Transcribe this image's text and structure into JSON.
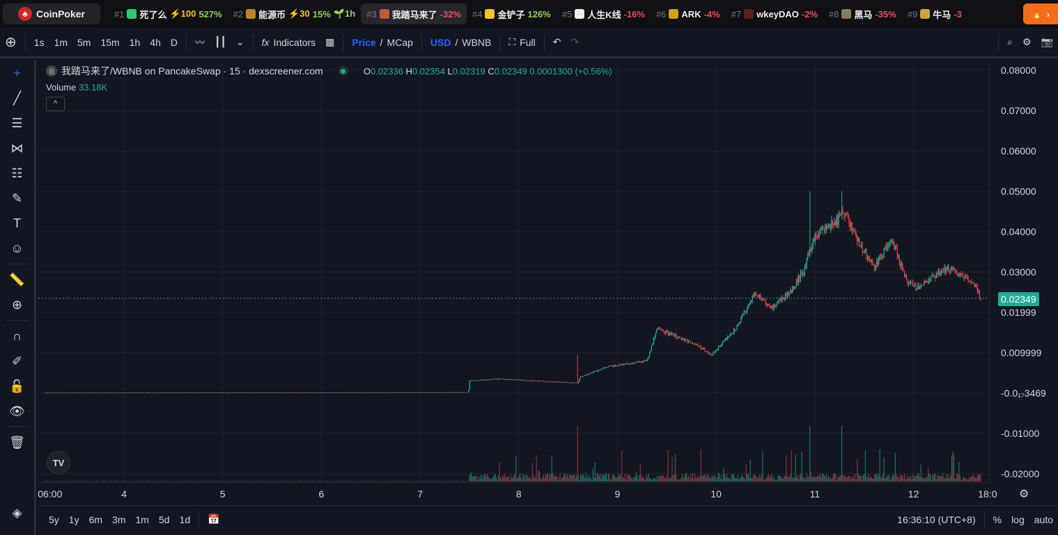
{
  "topbar": {
    "brand": "CoinPoker",
    "tickers": [
      {
        "rank": "#1",
        "name": "死了么",
        "boost": "⚡100",
        "change": "527%",
        "dir": "pos",
        "icon_color": "#2ecc71"
      },
      {
        "rank": "#2",
        "name": "能源币",
        "boost": "⚡30",
        "change": "15%",
        "extra": "🌱1h",
        "dir": "pos",
        "icon_color": "#b8862b"
      },
      {
        "rank": "#3",
        "name": "我踏马来了",
        "change": "-32%",
        "dir": "neg",
        "icon_color": "#c0583a",
        "active": true
      },
      {
        "rank": "#4",
        "name": "金铲子",
        "change": "126%",
        "dir": "pos",
        "icon_color": "#f5c12e"
      },
      {
        "rank": "#5",
        "name": "人生K线",
        "change": "-16%",
        "dir": "neg",
        "icon_color": "#eeeeee"
      },
      {
        "rank": "#6",
        "name": "ARK",
        "change": "-4%",
        "dir": "neg",
        "icon_color": "#d4a017"
      },
      {
        "rank": "#7",
        "name": "wkeyDAO",
        "change": "-2%",
        "dir": "neg",
        "icon_color": "#552222"
      },
      {
        "rank": "#8",
        "name": "黑马",
        "change": "-35%",
        "dir": "neg",
        "icon_color": "#8a7a60"
      },
      {
        "rank": "#9",
        "name": "牛马",
        "change": "-3",
        "dir": "neg",
        "icon_color": "#c9a640"
      }
    ]
  },
  "toolbar": {
    "intervals": [
      "1s",
      "1m",
      "5m",
      "15m",
      "1h",
      "4h",
      "D"
    ],
    "active_interval": "15m",
    "indicators": "Indicators",
    "price": "Price",
    "mcap": "MCap",
    "usd": "USD",
    "wbnb": "WBNB",
    "full": "Full"
  },
  "legend": {
    "icon": "我",
    "title": "我踏马来了/WBNB on PancakeSwap · 15 · dexscreener.com",
    "o": "0.02336",
    "h": "0.02354",
    "l": "0.02319",
    "c": "0.02349",
    "change": "0.0001300 (+0.56%)",
    "volume_label": "Volume",
    "volume": "33.18K"
  },
  "price_axis": [
    "0.08000",
    "0.07000",
    "0.06000",
    "0.05000",
    "0.04000",
    "0.03000",
    "0.01999",
    "0.009999",
    "-0.0₁₇3469",
    "-0.01000",
    "-0.02000"
  ],
  "current_price": "0.02349",
  "time_axis": [
    {
      "label": "06:00",
      "day": 3.25
    },
    {
      "label": "4",
      "day": 4
    },
    {
      "label": "5",
      "day": 5
    },
    {
      "label": "6",
      "day": 6
    },
    {
      "label": "7",
      "day": 7
    },
    {
      "label": "8",
      "day": 8
    },
    {
      "label": "9",
      "day": 9
    },
    {
      "label": "10",
      "day": 10
    },
    {
      "label": "11",
      "day": 11
    },
    {
      "label": "12",
      "day": 12
    },
    {
      "label": "18:0",
      "day": 12.75
    }
  ],
  "bottom": {
    "ranges": [
      "5y",
      "1y",
      "6m",
      "3m",
      "1m",
      "5d",
      "1d"
    ],
    "time": "16:36:10 (UTC+8)",
    "percent": "%",
    "log": "log",
    "auto": "auto"
  },
  "chart_data": {
    "type": "candlestick",
    "interval": "15m",
    "colors": {
      "up": "#22ab94",
      "down": "#f23645"
    },
    "price_path": [
      [
        3.2,
        0.0001
      ],
      [
        7.49,
        0.0002
      ],
      [
        7.5,
        0.003
      ],
      [
        7.8,
        0.0035
      ],
      [
        8.6,
        0.0025
      ],
      [
        8.62,
        0.004
      ],
      [
        8.9,
        0.0065
      ],
      [
        9.3,
        0.008
      ],
      [
        9.4,
        0.016
      ],
      [
        9.8,
        0.012
      ],
      [
        9.95,
        0.0095
      ],
      [
        10.2,
        0.016
      ],
      [
        10.4,
        0.025
      ],
      [
        10.55,
        0.021
      ],
      [
        10.75,
        0.025
      ],
      [
        10.9,
        0.031
      ],
      [
        10.98,
        0.038
      ],
      [
        11.05,
        0.04
      ],
      [
        11.2,
        0.042
      ],
      [
        11.3,
        0.045
      ],
      [
        11.45,
        0.037
      ],
      [
        11.6,
        0.031
      ],
      [
        11.7,
        0.035
      ],
      [
        11.78,
        0.038
      ],
      [
        11.95,
        0.027
      ],
      [
        12.05,
        0.026
      ],
      [
        12.2,
        0.029
      ],
      [
        12.35,
        0.031
      ],
      [
        12.5,
        0.029
      ],
      [
        12.6,
        0.028
      ],
      [
        12.68,
        0.0235
      ]
    ],
    "spikes": [
      [
        8.6,
        0.0095
      ],
      [
        10.95,
        0.05
      ],
      [
        11.27,
        0.05
      ]
    ]
  }
}
